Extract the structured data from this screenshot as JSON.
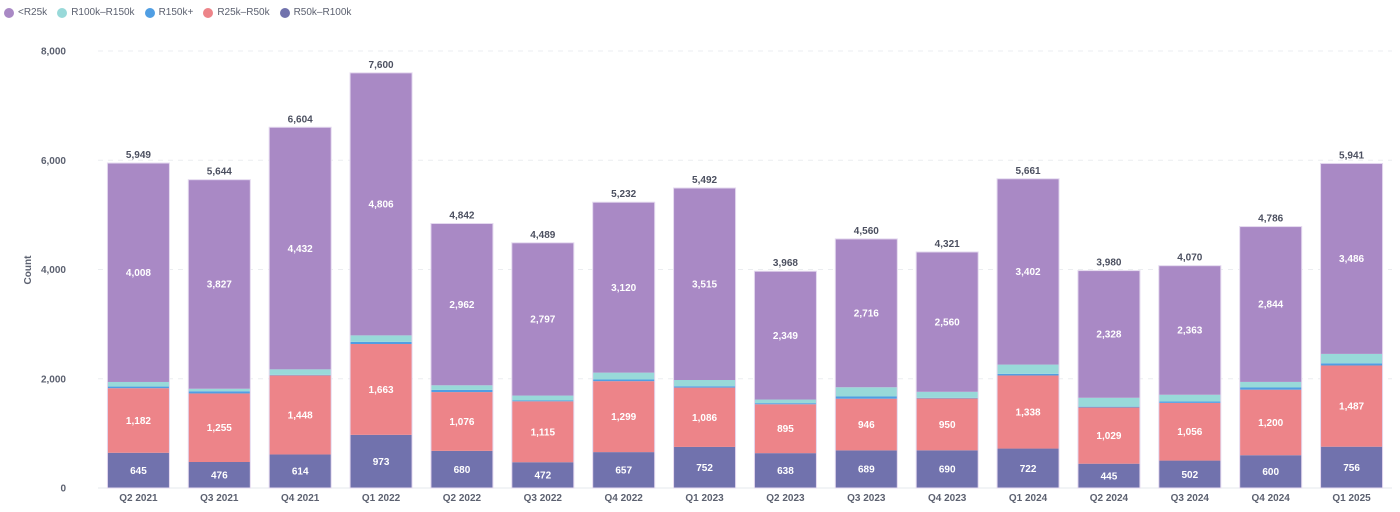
{
  "chart_data": {
    "type": "bar",
    "stacked": true,
    "title": "",
    "xlabel": "",
    "ylabel": "Count",
    "ylim": [
      0,
      8000
    ],
    "yticks": [
      0,
      2000,
      4000,
      6000,
      8000
    ],
    "ytick_labels": [
      "0",
      "2,000",
      "4,000",
      "6,000",
      "8,000"
    ],
    "grid": true,
    "legend_position": "top-left",
    "categories": [
      "Q2 2021",
      "Q3 2021",
      "Q4 2021",
      "Q1 2022",
      "Q2 2022",
      "Q3 2022",
      "Q4 2022",
      "Q1 2023",
      "Q2 2023",
      "Q3 2023",
      "Q4 2023",
      "Q1 2024",
      "Q2 2024",
      "Q3 2024",
      "Q4 2024",
      "Q1 2025"
    ],
    "legend_order": [
      "<R25k",
      "R100k-R150k",
      "R150k+",
      "R25k-R50k",
      "R50k-R100k"
    ],
    "series": [
      {
        "name": "R50k-R100k",
        "color": "#7172ad",
        "labeled": true,
        "values": [
          645,
          476,
          614,
          973,
          680,
          472,
          657,
          752,
          638,
          689,
          690,
          722,
          445,
          502,
          600,
          756
        ]
      },
      {
        "name": "R25k-R50k",
        "color": "#ed8489",
        "labeled": true,
        "values": [
          1182,
          1255,
          1448,
          1663,
          1076,
          1115,
          1299,
          1086,
          895,
          946,
          950,
          1338,
          1029,
          1056,
          1200,
          1487
        ]
      },
      {
        "name": "R150k+",
        "color": "#509ee3",
        "labeled": false,
        "values": [
          30,
          40,
          10,
          40,
          40,
          15,
          30,
          25,
          20,
          40,
          10,
          30,
          15,
          25,
          40,
          40
        ]
      },
      {
        "name": "R100k-R150k",
        "color": "#98d9d9",
        "labeled": false,
        "values": [
          84,
          46,
          100,
          118,
          84,
          90,
          126,
          114,
          66,
          169,
          111,
          169,
          163,
          124,
          102,
          172
        ]
      },
      {
        "name": "<R25k",
        "color": "#a989c5",
        "labeled": true,
        "values": [
          4008,
          3827,
          4432,
          4806,
          2962,
          2797,
          3120,
          3515,
          2349,
          2716,
          2560,
          3402,
          2328,
          2363,
          2844,
          3486
        ]
      }
    ],
    "totals": [
      5949,
      5644,
      6604,
      7600,
      4842,
      4489,
      5232,
      5492,
      3968,
      4560,
      4321,
      5661,
      3980,
      4070,
      4786,
      5941
    ]
  }
}
